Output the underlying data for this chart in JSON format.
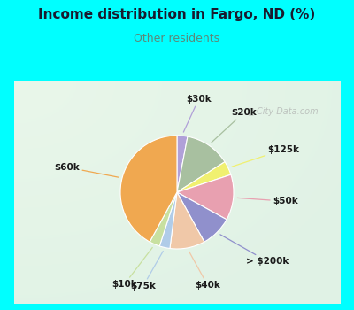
{
  "title": "Income distribution in Fargo, ND (%)",
  "subtitle": "Other residents",
  "outer_bg": "#00FFFF",
  "inner_bg_color": "#e0f0e8",
  "watermark": "City-Data.com",
  "title_color": "#1a1a2e",
  "subtitle_color": "#5a8a7a",
  "slices": [
    {
      "label": "$30k",
      "value": 3,
      "color": "#b0a0d8"
    },
    {
      "label": "$20k",
      "value": 13,
      "color": "#a8c0a0"
    },
    {
      "label": "$125k",
      "value": 4,
      "color": "#f0f070"
    },
    {
      "label": "$50k",
      "value": 13,
      "color": "#e8a0b0"
    },
    {
      "label": "> $200k",
      "value": 9,
      "color": "#9090cc"
    },
    {
      "label": "$40k",
      "value": 10,
      "color": "#f0c8a8"
    },
    {
      "label": "$75k",
      "value": 3,
      "color": "#b0cce8"
    },
    {
      "label": "$10k",
      "value": 3,
      "color": "#c8e0a0"
    },
    {
      "label": "$60k",
      "value": 42,
      "color": "#f0a850"
    }
  ],
  "label_radii": [
    1.28,
    1.32,
    1.38,
    1.32,
    1.35,
    1.3,
    1.32,
    1.38,
    1.38
  ]
}
